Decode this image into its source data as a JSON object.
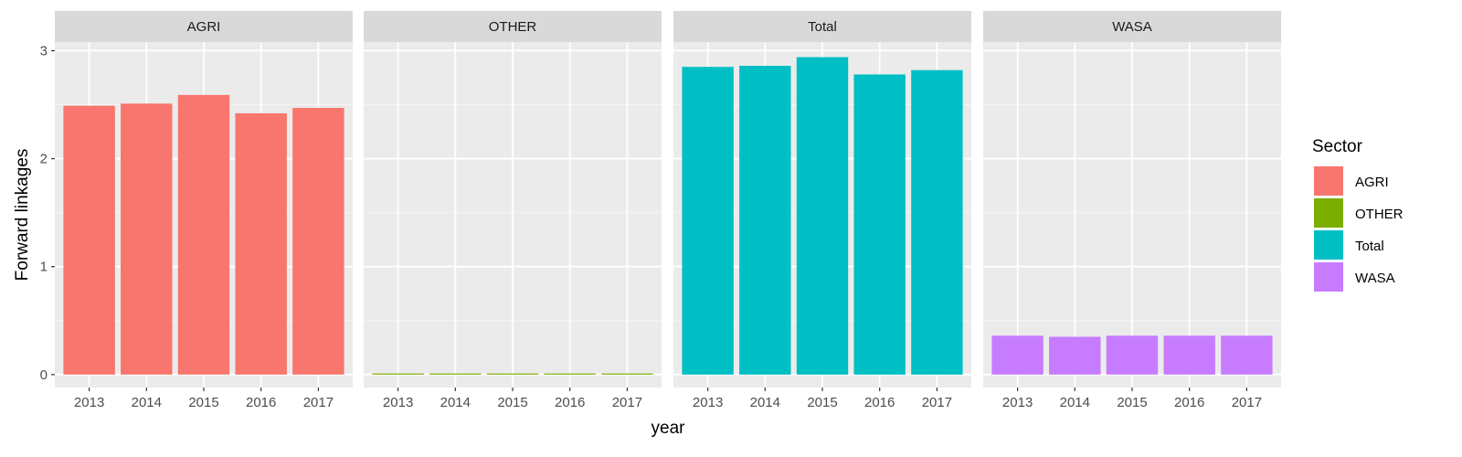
{
  "chart_data": {
    "type": "bar",
    "facet_by": "Sector",
    "xlabel": "year",
    "ylabel": "Forward linkages",
    "ylim": [
      -0.12,
      3.08
    ],
    "y_ticks": [
      "0",
      "1",
      "2",
      "3"
    ],
    "categories": [
      "2013",
      "2014",
      "2015",
      "2016",
      "2017"
    ],
    "grid": true,
    "legend": {
      "title": "Sector",
      "position": "right"
    },
    "panels": [
      {
        "name": "AGRI",
        "color": "#F8766D",
        "values": [
          2.49,
          2.51,
          2.59,
          2.42,
          2.47
        ]
      },
      {
        "name": "OTHER",
        "color": "#7CAE00",
        "values": [
          0.01,
          0.01,
          0.01,
          0.01,
          0.01
        ]
      },
      {
        "name": "Total",
        "color": "#00BFC4",
        "values": [
          2.85,
          2.86,
          2.94,
          2.78,
          2.82
        ]
      },
      {
        "name": "WASA",
        "color": "#C77CFF",
        "values": [
          0.36,
          0.35,
          0.36,
          0.36,
          0.36
        ]
      }
    ]
  }
}
